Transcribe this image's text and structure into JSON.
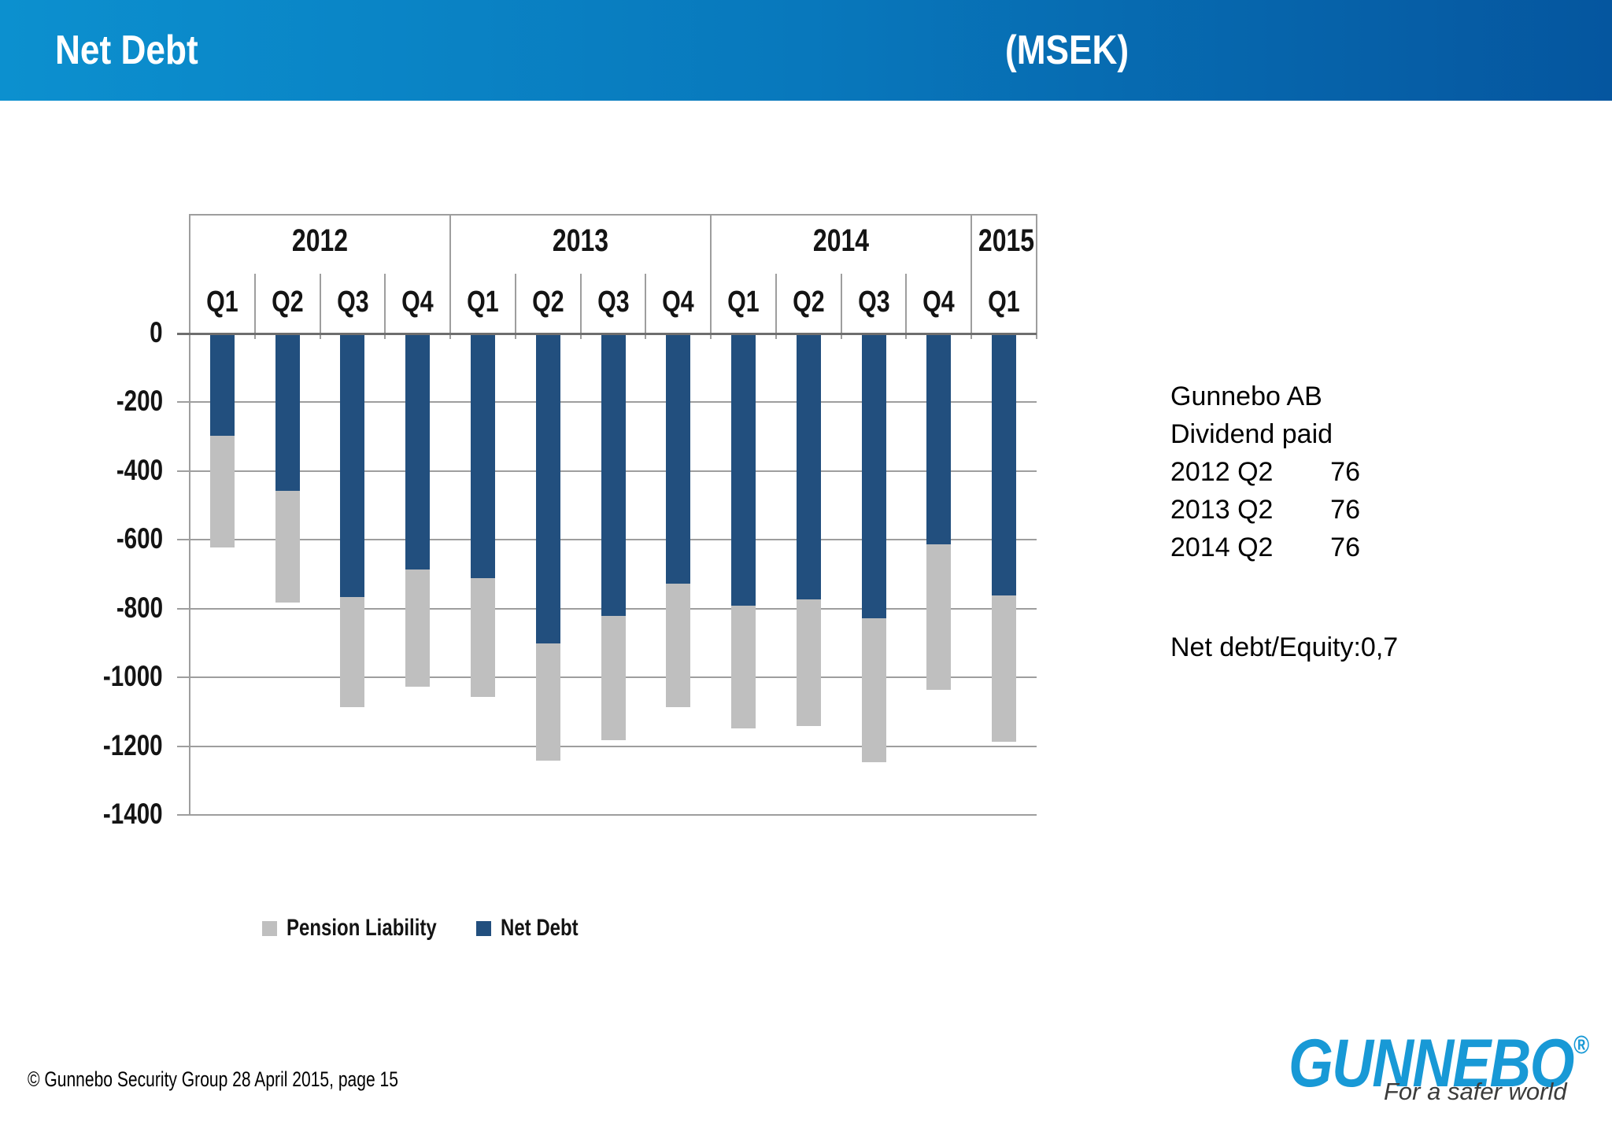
{
  "header": {
    "title": "Net Debt",
    "unit": "(MSEK)"
  },
  "colors": {
    "header_gradient_left": "#0C90CF",
    "header_gradient_mid": "#0878BC",
    "header_gradient_right": "#05569F",
    "bar_net_debt": "#224F7E",
    "bar_pension_liability": "#BFBFBF",
    "gridline": "#9E9E9E",
    "logo_blue": "#1899D6",
    "tagline_gray": "#3C3C3B"
  },
  "chart_data": {
    "type": "bar",
    "stacked": true,
    "title": "Net Debt (MSEK)",
    "xlabel": "",
    "ylabel": "",
    "ylim": [
      -1400,
      0
    ],
    "ytick_step": 200,
    "yticks": [
      "0",
      "-200",
      "-400",
      "-600",
      "-800",
      "-1000",
      "-1200",
      "-1400"
    ],
    "grid": true,
    "year_groups": [
      {
        "label": "2012",
        "quarters": 4
      },
      {
        "label": "2013",
        "quarters": 4
      },
      {
        "label": "2014",
        "quarters": 4
      },
      {
        "label": "2015",
        "quarters": 1
      }
    ],
    "categories": [
      "Q1",
      "Q2",
      "Q3",
      "Q4",
      "Q1",
      "Q2",
      "Q3",
      "Q4",
      "Q1",
      "Q2",
      "Q3",
      "Q4",
      "Q1"
    ],
    "series": [
      {
        "name": "Net Debt",
        "color": "#224F7E",
        "values": [
          -295,
          -455,
          -765,
          -685,
          -710,
          -900,
          -820,
          -725,
          -790,
          -770,
          -825,
          -610,
          -760
        ]
      },
      {
        "name": "Pension Liability",
        "color": "#BFBFBF",
        "values": [
          -325,
          -325,
          -320,
          -340,
          -345,
          -340,
          -360,
          -360,
          -355,
          -370,
          -420,
          -425,
          -425
        ]
      }
    ],
    "stack_totals": [
      -620,
      -780,
      -1085,
      -1025,
      -1055,
      -1240,
      -1180,
      -1085,
      -1145,
      -1140,
      -1245,
      -1035,
      -1185
    ],
    "legend_position": "bottom",
    "legend": [
      {
        "label": "Pension Liability",
        "color": "#BFBFBF"
      },
      {
        "label": "Net Debt",
        "color": "#224F7E"
      }
    ]
  },
  "info_panel": {
    "company": "Gunnebo AB",
    "heading": "Dividend paid",
    "dividends": [
      {
        "period": "2012 Q2",
        "amount": "76"
      },
      {
        "period": "2013 Q2",
        "amount": "76"
      },
      {
        "period": "2014 Q2",
        "amount": "76"
      }
    ],
    "ratio_label": "Net debt/Equity:",
    "ratio_value": "0,7"
  },
  "footer": {
    "copyright": "© Gunnebo Security Group 28 April 2015, page 15"
  },
  "logo": {
    "brand": "GUNNEBO",
    "registered": "®",
    "tagline": "For a safer world"
  }
}
